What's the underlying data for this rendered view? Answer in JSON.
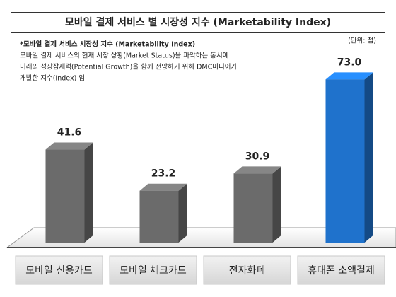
{
  "chart_data": {
    "type": "bar3d",
    "title": "모바일 결제 서비스 별 시장성 지수 (Marketability Index)",
    "note_title": "*모바일 결제 서비스 시장성 지수 (Marketability Index)",
    "note_lines": [
      "모바일 결제 서비스의 현재 시장 상황(Market Status)을 파악하는 동시에",
      "미래의 성장잠재력(Potential Growth)을 함께 전망하기 위해 DMC미디어가",
      "개발한 지수(Index) 임."
    ],
    "unit": "(단위: 점)",
    "categories": [
      "모바일 신용카드",
      "모바일 체크카드",
      "전자화폐",
      "휴대폰 소액결제"
    ],
    "values": [
      41.6,
      23.2,
      30.9,
      73
    ],
    "value_labels": [
      "41.6",
      "23.2",
      "30.9",
      "73.0"
    ],
    "colors": [
      "#6b6b6b",
      "#6b6b6b",
      "#6b6b6b",
      "#1f72cc"
    ],
    "ylim": [
      0,
      100
    ]
  }
}
